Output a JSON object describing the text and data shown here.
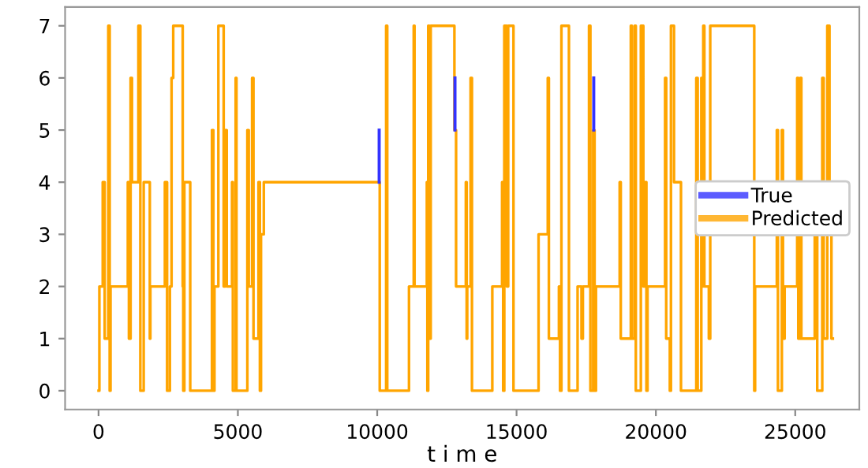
{
  "chart_data": {
    "type": "step",
    "xlabel": "t i m e",
    "x": [
      0,
      30,
      150,
      220,
      350,
      400,
      430,
      1050,
      1090,
      1150,
      1200,
      1430,
      1500,
      1620,
      1840,
      1860,
      2380,
      2460,
      2560,
      2620,
      2680,
      3020,
      3040,
      3080,
      3290,
      4070,
      4120,
      4160,
      4300,
      4490,
      4550,
      4600,
      4790,
      4820,
      4920,
      4950,
      5340,
      5390,
      5510,
      5560,
      5740,
      5790,
      5830,
      5930,
      10090,
      10320,
      10360,
      11140,
      11310,
      11340,
      11780,
      11800,
      11830,
      11870,
      11920,
      12770,
      12830,
      13180,
      13210,
      13230,
      13350,
      13400,
      14130,
      14480,
      14520,
      14560,
      14650,
      14700,
      14890,
      15790,
      16120,
      16160,
      16520,
      16560,
      16610,
      16880,
      17190,
      17330,
      17380,
      17600,
      17650,
      17750,
      17800,
      17850,
      18700,
      18740,
      19100,
      19140,
      19240,
      19280,
      19460,
      19550,
      19620,
      19660,
      19700,
      20330,
      20370,
      20500,
      20540,
      20650,
      20900,
      21450,
      21500,
      21630,
      21680,
      21700,
      21740,
      21900,
      21950,
      23530,
      23560,
      24340,
      24380,
      24520,
      24560,
      24620,
      25070,
      25110,
      25180,
      25220,
      25700,
      25790,
      25970,
      26020,
      26150,
      26230,
      26300,
      26350
    ],
    "series": [
      {
        "name": "True",
        "color": "#3333ff",
        "type": "line",
        "x": [
          10070,
          10070
        ],
        "values": [
          4,
          5
        ]
      },
      {
        "color": "#3333ff",
        "type": "line",
        "x": [
          12790,
          12790
        ],
        "values": [
          5,
          6
        ]
      },
      {
        "color": "#3333ff",
        "type": "line",
        "x": [
          17770,
          17770
        ],
        "values": [
          5,
          6
        ]
      },
      {
        "name": "Predicted",
        "color": "#ffa500",
        "values": [
          0,
          2,
          4,
          1,
          7,
          0,
          2,
          4,
          1,
          6,
          4,
          7,
          0,
          4,
          1,
          2,
          4,
          0,
          2,
          6,
          7,
          2,
          0,
          4,
          0,
          5,
          0,
          2,
          7,
          2,
          5,
          2,
          4,
          0,
          6,
          0,
          5,
          2,
          6,
          1,
          4,
          0,
          3,
          4,
          0,
          7,
          0,
          2,
          7,
          2,
          4,
          0,
          7,
          1,
          7,
          5,
          2,
          4,
          1,
          2,
          6,
          0,
          2,
          4,
          0,
          7,
          2,
          7,
          0,
          3,
          6,
          1,
          2,
          0,
          7,
          0,
          2,
          1,
          2,
          7,
          0,
          5,
          0,
          2,
          4,
          1,
          7,
          1,
          7,
          0,
          7,
          2,
          4,
          0,
          2,
          6,
          1,
          0,
          7,
          4,
          0,
          6,
          0,
          6,
          2,
          7,
          2,
          1,
          7,
          0,
          2,
          5,
          0,
          5,
          1,
          2,
          6,
          1,
          6,
          1,
          4,
          0,
          6,
          1,
          7,
          4,
          1,
          1
        ]
      }
    ],
    "xlim": [
      -1200,
      27300
    ],
    "ylim": [
      -0.36,
      7.36
    ],
    "xticks": [
      0,
      5000,
      10000,
      15000,
      20000,
      25000
    ],
    "yticks": [
      0,
      1,
      2,
      3,
      4,
      5,
      6,
      7
    ],
    "grid": false,
    "legend": "center right"
  }
}
